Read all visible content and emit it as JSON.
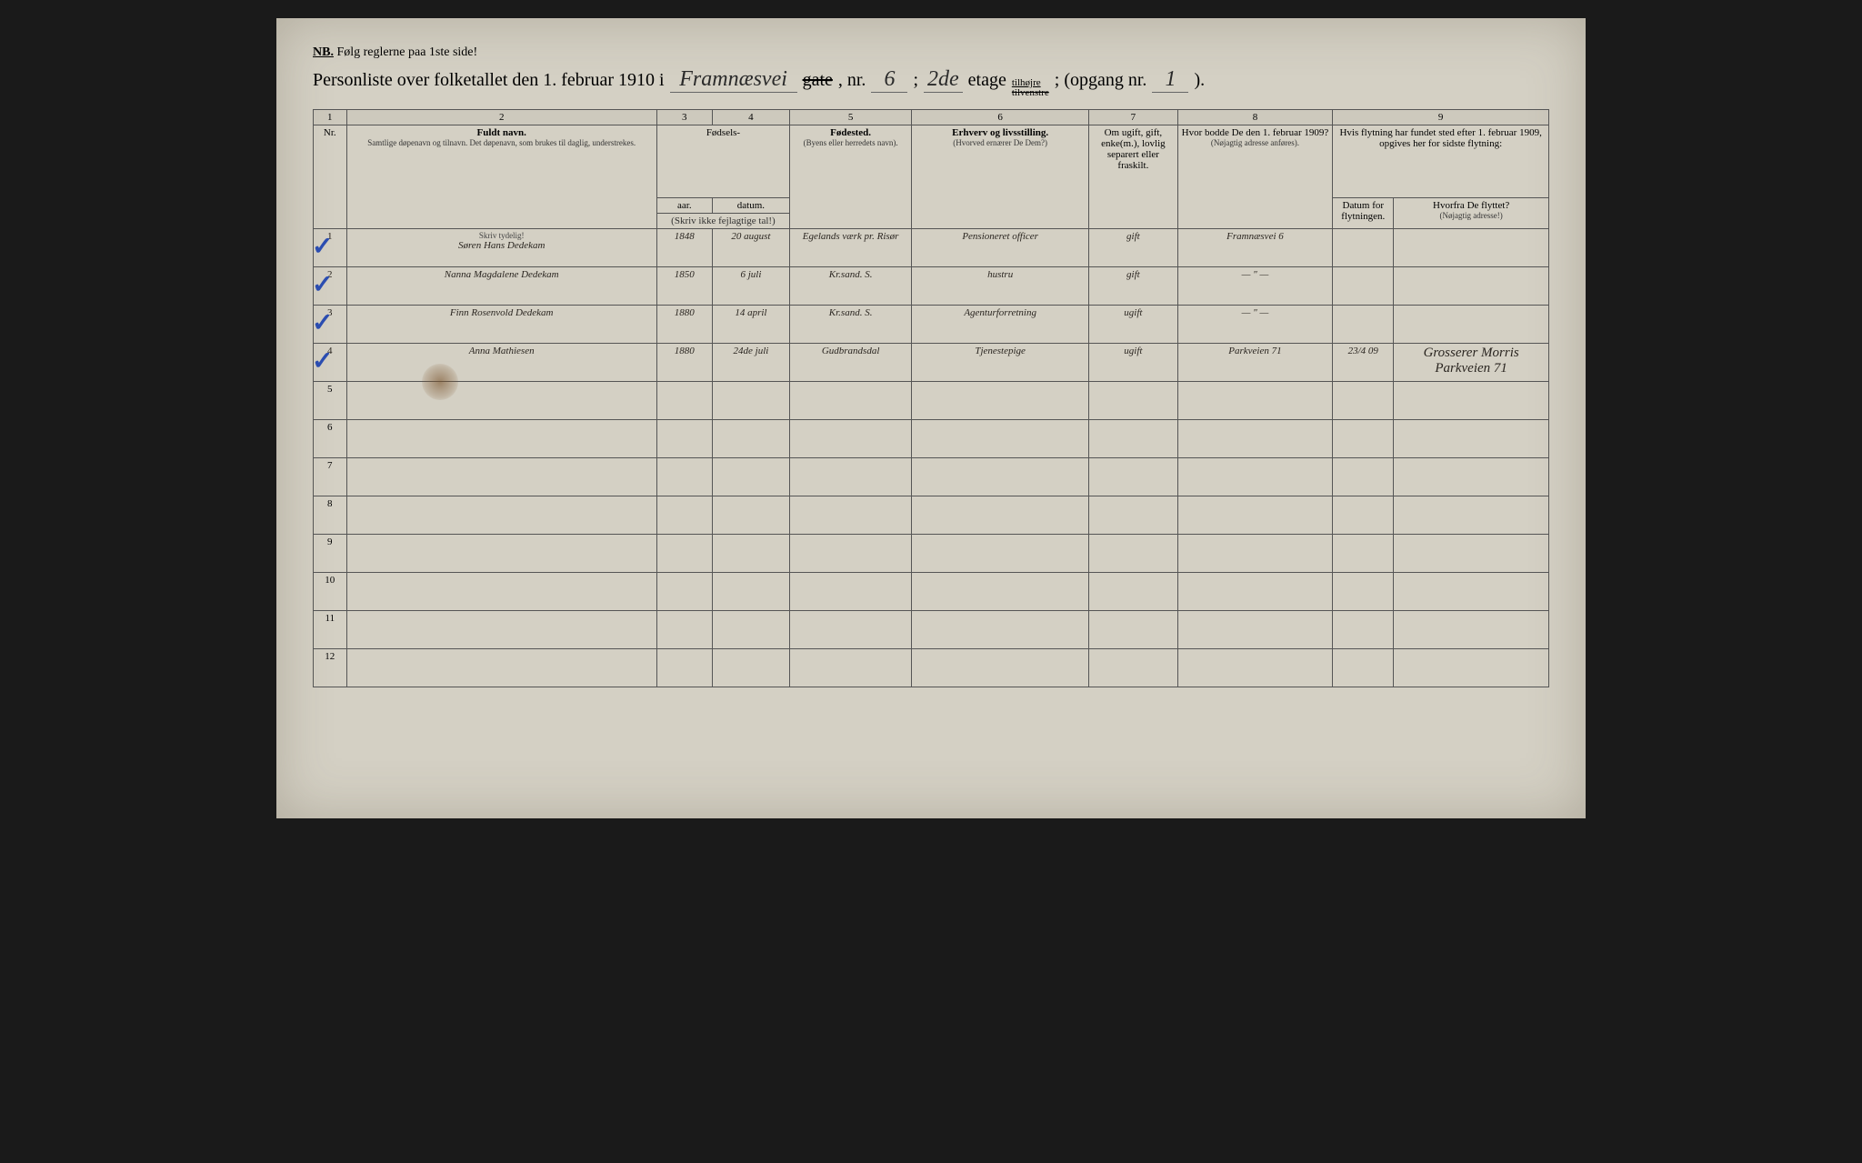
{
  "nb": {
    "label": "NB.",
    "text": "Følg reglerne paa 1ste side!"
  },
  "title": {
    "prefix": "Personliste over folketallet den 1. februar 1910 i",
    "street": "Framnæsvei",
    "gate_label": "gate",
    "nr_label": ", nr.",
    "nr": "6",
    "semicolon": ";",
    "floor": "2de",
    "etage_label": "etage",
    "side_top": "tilhøjre",
    "side_bottom_strike": "tilvenstre",
    "opgang_label": "; (opgang nr.",
    "opgang": "1",
    "close": ")."
  },
  "columns": {
    "c1": "1",
    "c2": "2",
    "c3": "3",
    "c4": "4",
    "c5": "5",
    "c6": "6",
    "c7": "7",
    "c8": "8",
    "c9": "9",
    "nr": "Nr.",
    "fuldt_navn": "Fuldt navn.",
    "fuldt_navn_sub": "Samtlige døpenavn og tilnavn. Det døpenavn, som brukes til daglig, understrekes.",
    "fodsels": "Fødsels-",
    "aar": "aar.",
    "datum": "datum.",
    "skriv_ikke": "(Skriv ikke fejlagtige tal!)",
    "fodested": "Fødested.",
    "fodested_sub": "(Byens eller herredets navn).",
    "erhverv": "Erhverv og livsstilling.",
    "erhverv_sub": "(Hvorved ernærer De Dem?)",
    "marital": "Om ugift, gift, enke(m.), lovlig separert eller fraskilt.",
    "addr1909": "Hvor bodde De den 1. februar 1909?",
    "addr1909_sub": "(Nøjagtig adresse anføres).",
    "flytning": "Hvis flytning har fundet sted efter 1. februar 1909, opgives her for sidste flytning:",
    "datum_flyt": "Datum for flytningen.",
    "hvorfra": "Hvorfra De flyttet?",
    "hvorfra_sub": "(Nøjagtig adresse!)",
    "skriv_tydelig": "Skriv tydelig!"
  },
  "rows": [
    {
      "nr": "1",
      "check": true,
      "name": "Søren Hans Dedekam",
      "year": "1848",
      "date": "20 august",
      "birthplace": "Egelands værk pr. Risør",
      "occupation": "Pensioneret officer",
      "marital": "gift",
      "addr1909": "Framnæsvei 6",
      "movedate": "",
      "movefrom": ""
    },
    {
      "nr": "2",
      "check": true,
      "name": "Nanna Magdalene Dedekam",
      "year": "1850",
      "date": "6 juli",
      "birthplace": "Kr.sand. S.",
      "occupation": "hustru",
      "marital": "gift",
      "addr1909": "— \" —",
      "movedate": "",
      "movefrom": ""
    },
    {
      "nr": "3",
      "check": true,
      "name": "Finn Rosenvold Dedekam",
      "year": "1880",
      "date": "14 april",
      "birthplace": "Kr.sand. S.",
      "occupation": "Agenturforretning",
      "marital": "ugift",
      "addr1909": "— \" —",
      "movedate": "",
      "movefrom": ""
    },
    {
      "nr": "4",
      "check": true,
      "name": "Anna Mathiesen",
      "year": "1880",
      "date": "24de juli",
      "birthplace": "Gudbrandsdal",
      "occupation": "Tjenestepige",
      "marital": "ugift",
      "addr1909": "Parkveien 71",
      "movedate": "23/4 09",
      "movefrom": "Grosserer Morris Parkveien 71"
    }
  ],
  "empty_rows": [
    "5",
    "6",
    "7",
    "8",
    "9",
    "10",
    "11",
    "12"
  ]
}
